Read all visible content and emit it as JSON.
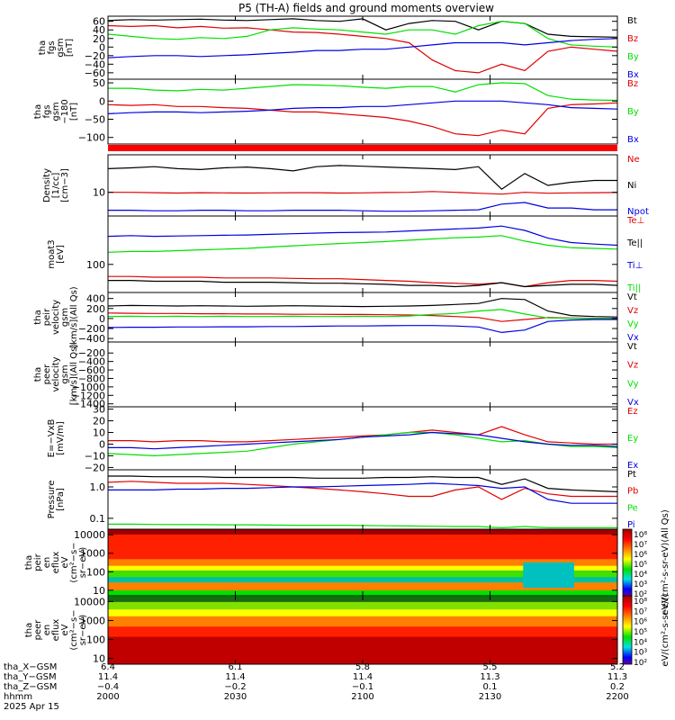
{
  "title": "P5 (TH-A) fields and ground moments overview",
  "colors": {
    "black": "#000000",
    "red": "#e00000",
    "green": "#00e000",
    "blue": "#0000e0"
  },
  "chart_data": [
    {
      "type": "line",
      "ylabel": [
        "tha",
        "fgs",
        "gsm",
        "[nT]"
      ],
      "ylim": [
        -75,
        72
      ],
      "yticks": [
        "60",
        "40",
        "20",
        "0",
        "−20",
        "−40",
        "−60"
      ],
      "ytick_values": [
        60,
        40,
        20,
        0,
        -20,
        -40,
        -60
      ],
      "series": [
        {
          "name": "Bt",
          "color": "black",
          "values": [
            62,
            64,
            63,
            64,
            65,
            63,
            62,
            64,
            66,
            62,
            60,
            66,
            40,
            55,
            62,
            60,
            40,
            60,
            55,
            30,
            25,
            24,
            23
          ]
        },
        {
          "name": "Bz",
          "color": "red",
          "values": [
            50,
            48,
            50,
            45,
            48,
            44,
            45,
            40,
            35,
            34,
            30,
            25,
            20,
            10,
            -30,
            -55,
            -60,
            -40,
            -55,
            -10,
            0,
            -5,
            -10
          ]
        },
        {
          "name": "By",
          "color": "green",
          "values": [
            30,
            25,
            20,
            18,
            22,
            20,
            25,
            40,
            45,
            42,
            40,
            35,
            30,
            40,
            40,
            30,
            50,
            60,
            55,
            20,
            5,
            2,
            0
          ]
        },
        {
          "name": "Bx",
          "color": "blue",
          "values": [
            -25,
            -22,
            -20,
            -20,
            -22,
            -20,
            -18,
            -15,
            -12,
            -8,
            -8,
            -5,
            -5,
            0,
            5,
            10,
            10,
            10,
            5,
            10,
            15,
            18,
            20
          ]
        }
      ]
    },
    {
      "type": "line",
      "ylabel": [
        "tha",
        "fgs",
        "gsm",
        "−180",
        "[nT]"
      ],
      "ylim": [
        -118,
        60
      ],
      "yticks": [
        "50",
        "0",
        "−50",
        "−100"
      ],
      "ytick_values": [
        50,
        0,
        -50,
        -100
      ],
      "series": [
        {
          "name": "Bz",
          "color": "red",
          "values": [
            -10,
            -12,
            -10,
            -15,
            -15,
            -18,
            -20,
            -25,
            -30,
            -30,
            -35,
            -40,
            -45,
            -55,
            -70,
            -90,
            -95,
            -80,
            -90,
            -20,
            -10,
            -8,
            -5
          ]
        },
        {
          "name": "By",
          "color": "green",
          "values": [
            35,
            35,
            30,
            28,
            32,
            30,
            35,
            40,
            45,
            44,
            42,
            38,
            35,
            40,
            40,
            25,
            45,
            50,
            48,
            15,
            5,
            3,
            2
          ]
        },
        {
          "name": "Bx",
          "color": "blue",
          "values": [
            -35,
            -32,
            -30,
            -30,
            -32,
            -30,
            -28,
            -25,
            -20,
            -18,
            -18,
            -15,
            -15,
            -10,
            -5,
            0,
            0,
            0,
            -5,
            -10,
            -18,
            -20,
            -22
          ]
        }
      ]
    },
    {
      "type": "line",
      "ylabel": [
        "Density",
        "[1/cc]",
        "[cm−3]"
      ],
      "log": true,
      "ylim": [
        2.5,
        90
      ],
      "yticks": [
        "10"
      ],
      "ytick_values": [
        10
      ],
      "series": [
        {
          "name": "Ne",
          "color": "red",
          "values": [
            10,
            10,
            9.8,
            9.6,
            9.8,
            9.7,
            9.6,
            9.7,
            9.8,
            9.8,
            9.6,
            9.7,
            9.9,
            10,
            10.5,
            10,
            9.5,
            9,
            10,
            9.5,
            9.7,
            9.8,
            9.9
          ]
        },
        {
          "name": "Ni",
          "color": "black",
          "values": [
            40,
            42,
            45,
            40,
            38,
            42,
            44,
            40,
            35,
            45,
            48,
            46,
            44,
            42,
            40,
            38,
            45,
            12,
            30,
            15,
            18,
            20,
            20
          ]
        },
        {
          "name": "Npot",
          "color": "blue",
          "values": [
            3.5,
            3.5,
            3.4,
            3.4,
            3.5,
            3.5,
            3.4,
            3.4,
            3.5,
            3.5,
            3.5,
            3.4,
            3.3,
            3.3,
            3.4,
            3.5,
            3.6,
            5,
            5.5,
            4,
            4,
            3.6,
            3.6
          ]
        }
      ]
    },
    {
      "type": "line",
      "ylabel": [
        "moat3",
        "[eV]"
      ],
      "log": true,
      "ylim": [
        20,
        1600
      ],
      "yticks": [
        "100"
      ],
      "ytick_values": [
        100
      ],
      "series": [
        {
          "name": "Te⊥",
          "color": "red",
          "values": [
            50,
            50,
            48,
            48,
            48,
            46,
            46,
            46,
            45,
            44,
            44,
            42,
            40,
            38,
            35,
            34,
            32,
            35,
            28,
            35,
            40,
            40,
            38
          ]
        },
        {
          "name": "Te||",
          "color": "black",
          "values": [
            40,
            40,
            38,
            38,
            38,
            36,
            36,
            36,
            35,
            34,
            34,
            33,
            32,
            30,
            30,
            28,
            30,
            35,
            28,
            30,
            32,
            32,
            30
          ]
        },
        {
          "name": "Ti⊥",
          "color": "blue",
          "values": [
            500,
            520,
            500,
            510,
            520,
            530,
            540,
            560,
            580,
            600,
            620,
            630,
            640,
            680,
            720,
            760,
            800,
            900,
            700,
            450,
            350,
            320,
            300
          ]
        },
        {
          "name": "Ti||",
          "color": "green",
          "values": [
            200,
            210,
            210,
            220,
            230,
            240,
            250,
            270,
            290,
            310,
            330,
            350,
            370,
            400,
            430,
            460,
            480,
            520,
            380,
            300,
            260,
            250,
            240
          ]
        }
      ]
    },
    {
      "type": "line",
      "ylabel": [
        "tha",
        "peir",
        "velocity",
        "gsm",
        "[km/s](All Qs)"
      ],
      "ylim": [
        -470,
        520
      ],
      "yticks": [
        "400",
        "200",
        "0",
        "−200",
        "−400"
      ],
      "ytick_values": [
        400,
        200,
        0,
        -200,
        -400
      ],
      "series": [
        {
          "name": "Vt",
          "color": "black",
          "values": [
            250,
            260,
            255,
            250,
            255,
            250,
            245,
            250,
            255,
            250,
            245,
            240,
            245,
            250,
            260,
            280,
            300,
            400,
            380,
            150,
            60,
            40,
            30
          ]
        },
        {
          "name": "Vz",
          "color": "red",
          "values": [
            110,
            105,
            100,
            100,
            95,
            95,
            90,
            90,
            85,
            85,
            80,
            80,
            75,
            70,
            60,
            40,
            20,
            -60,
            -20,
            20,
            10,
            5,
            5
          ]
        },
        {
          "name": "Vy",
          "color": "green",
          "values": [
            40,
            45,
            40,
            45,
            40,
            45,
            40,
            40,
            45,
            40,
            40,
            45,
            40,
            50,
            80,
            100,
            150,
            180,
            90,
            10,
            5,
            0,
            0
          ]
        },
        {
          "name": "Vx",
          "color": "blue",
          "values": [
            -180,
            -175,
            -175,
            -170,
            -170,
            -165,
            -165,
            -160,
            -160,
            -155,
            -150,
            -150,
            -145,
            -140,
            -140,
            -150,
            -170,
            -280,
            -230,
            -60,
            -30,
            -20,
            -20
          ]
        }
      ]
    },
    {
      "type": "line",
      "ylabel": [
        "tha",
        "peer",
        "velocity",
        "gsm",
        "[km/s](All Qs)"
      ],
      "ylim": [
        -1470,
        60
      ],
      "yticks": [
        "−200",
        "−400",
        "−600",
        "−800",
        "−1000",
        "−1200",
        "−1400"
      ],
      "ytick_values": [
        -200,
        -400,
        -600,
        -800,
        -1000,
        -1200,
        -1400
      ],
      "legend": [
        "Vt",
        "Vz",
        "Vy",
        "Vx"
      ],
      "legend_colors": [
        "black",
        "red",
        "green",
        "blue"
      ],
      "series": []
    },
    {
      "type": "line",
      "ylabel": [
        "E=−VxB",
        "[mV/m]"
      ],
      "ylim": [
        -22,
        32
      ],
      "yticks": [
        "30",
        "20",
        "10",
        "0",
        "−10",
        "−20"
      ],
      "ytick_values": [
        30,
        20,
        10,
        0,
        -10,
        -20
      ],
      "series": [
        {
          "name": "Ez",
          "color": "red",
          "values": [
            3,
            3,
            2,
            3,
            3,
            2,
            2,
            3,
            4,
            5,
            6,
            7,
            8,
            10,
            12,
            10,
            8,
            15,
            8,
            2,
            1,
            0,
            0
          ]
        },
        {
          "name": "Ey",
          "color": "green",
          "values": [
            -8,
            -9,
            -10,
            -9,
            -8,
            -7,
            -6,
            -3,
            0,
            2,
            4,
            6,
            8,
            10,
            10,
            8,
            5,
            2,
            3,
            0,
            -2,
            -2,
            -3
          ]
        },
        {
          "name": "Ex",
          "color": "blue",
          "values": [
            -3,
            -3,
            -4,
            -3,
            -2,
            -1,
            0,
            1,
            2,
            3,
            4,
            6,
            7,
            8,
            10,
            9,
            8,
            5,
            2,
            0,
            -1,
            -1,
            -2
          ]
        }
      ]
    },
    {
      "type": "line",
      "ylabel": [
        "Pressure",
        "[nPa]"
      ],
      "log": true,
      "ylim": [
        0.045,
        3.5
      ],
      "yticks": [
        "1.0",
        "0.1"
      ],
      "ytick_values": [
        1.0,
        0.1
      ],
      "series": [
        {
          "name": "Pt",
          "color": "black",
          "values": [
            2.2,
            2.2,
            2.1,
            2.1,
            2.1,
            2.0,
            2.0,
            2.0,
            2.0,
            1.9,
            1.9,
            1.9,
            2.0,
            2.0,
            2.1,
            2.0,
            2.0,
            1.2,
            1.8,
            0.9,
            0.8,
            0.75,
            0.7
          ]
        },
        {
          "name": "Pb",
          "color": "red",
          "values": [
            1.4,
            1.5,
            1.4,
            1.3,
            1.3,
            1.3,
            1.2,
            1.1,
            1.0,
            0.9,
            0.8,
            0.7,
            0.6,
            0.5,
            0.5,
            0.8,
            1.0,
            0.4,
            0.9,
            0.6,
            0.5,
            0.5,
            0.5
          ]
        },
        {
          "name": "Pe",
          "color": "green",
          "values": [
            0.065,
            0.065,
            0.064,
            0.063,
            0.063,
            0.062,
            0.062,
            0.061,
            0.06,
            0.06,
            0.06,
            0.059,
            0.058,
            0.057,
            0.056,
            0.055,
            0.055,
            0.05,
            0.055,
            0.05,
            0.05,
            0.05,
            0.05
          ]
        },
        {
          "name": "Pi",
          "color": "blue",
          "values": [
            0.8,
            0.8,
            0.8,
            0.85,
            0.85,
            0.9,
            0.9,
            0.95,
            1.0,
            1.0,
            1.05,
            1.1,
            1.15,
            1.2,
            1.3,
            1.2,
            1.1,
            0.9,
            1.0,
            0.4,
            0.3,
            0.3,
            0.3
          ]
        }
      ]
    },
    {
      "type": "heatmap",
      "ylabel": [
        "tha",
        "peir",
        "en",
        "eflux",
        "eV",
        "(cm²−s−",
        "sr−eV)"
      ],
      "log": true,
      "ylim": [
        5,
        20000
      ],
      "yticks": [
        "10000",
        "1000",
        "100",
        "10"
      ],
      "ytick_values": [
        10000,
        1000,
        100,
        10
      ],
      "colorbar_label": "eV/(cm²-s-sr-eV)(All Qs)",
      "colorbar_ticks": [
        "10⁸",
        "10⁷",
        "10⁶",
        "10⁵",
        "10⁴",
        "10³",
        "10²"
      ],
      "colorbar_range": [
        "10²",
        "10⁸"
      ]
    },
    {
      "type": "heatmap",
      "ylabel": [
        "tha",
        "peer",
        "en",
        "eflux",
        "eV",
        "(cm²−s−",
        "sr−eV)"
      ],
      "log": true,
      "ylim": [
        5,
        20000
      ],
      "yticks": [
        "10000",
        "1000",
        "100",
        "10"
      ],
      "ytick_values": [
        10000,
        1000,
        100,
        10
      ],
      "colorbar_label": "eV/(cm²-s-sr-eV)",
      "colorbar_ticks": [
        "10⁸",
        "10⁷",
        "10⁶",
        "10⁵",
        "10⁴",
        "10³",
        "10²"
      ],
      "colorbar_range": [
        "10²",
        "10⁸"
      ]
    }
  ],
  "xaxis": {
    "rows": [
      {
        "label": "tha_X−GSM",
        "values": [
          "6.4",
          "6.1",
          "5.8",
          "5.5",
          "5.2"
        ]
      },
      {
        "label": "tha_Y−GSM",
        "values": [
          "11.4",
          "11.4",
          "11.4",
          "11.3",
          "11.3"
        ]
      },
      {
        "label": "tha_Z−GSM",
        "values": [
          "−0.4",
          "−0.2",
          "−0.1",
          "0.1",
          "0.2"
        ]
      },
      {
        "label": "hhmm",
        "values": [
          "2000",
          "2030",
          "2100",
          "2130",
          "2200"
        ]
      }
    ],
    "date": "2025 Apr 15",
    "xlim": [
      0,
      120
    ]
  }
}
